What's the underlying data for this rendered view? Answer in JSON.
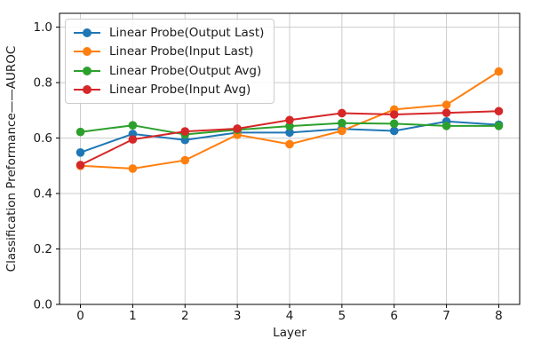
{
  "chart_data": {
    "type": "line",
    "x": [
      0,
      1,
      2,
      3,
      4,
      5,
      6,
      7,
      8
    ],
    "series": [
      {
        "name": "Linear Probe(Output Last)",
        "color": "#1f77b4",
        "values": [
          0.548,
          0.615,
          0.593,
          0.62,
          0.62,
          0.633,
          0.626,
          0.66,
          0.648
        ]
      },
      {
        "name": "Linear Probe(Input Last)",
        "color": "#ff7f0e",
        "values": [
          0.5,
          0.49,
          0.52,
          0.612,
          0.578,
          0.626,
          0.703,
          0.72,
          0.84
        ]
      },
      {
        "name": "Linear Probe(Output Avg)",
        "color": "#2ca02c",
        "values": [
          0.622,
          0.646,
          0.613,
          0.63,
          0.643,
          0.654,
          0.652,
          0.644,
          0.644
        ]
      },
      {
        "name": "Linear Probe(Input Avg)",
        "color": "#d62728",
        "values": [
          0.503,
          0.595,
          0.624,
          0.634,
          0.665,
          0.69,
          0.685,
          0.691,
          0.697
        ]
      }
    ],
    "title": "",
    "xlabel": "Layer",
    "ylabel": "Classification Preformance——AUROC",
    "xlim": [
      -0.4,
      8.4
    ],
    "ylim": [
      0.0,
      1.05
    ],
    "x_ticks": [
      0,
      1,
      2,
      3,
      4,
      5,
      6,
      7,
      8
    ],
    "y_ticks": [
      0.0,
      0.2,
      0.4,
      0.6,
      0.8,
      1.0
    ],
    "grid": true,
    "legend_position": "upper left",
    "grid_color": "#cccccc",
    "spine_color": "#000000"
  }
}
